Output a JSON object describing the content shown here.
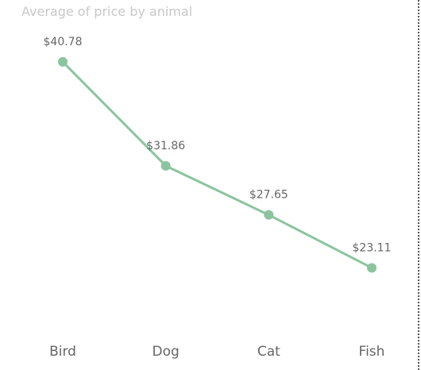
{
  "chart_data": {
    "type": "line",
    "title": "Average of price by animal",
    "categories": [
      "Bird",
      "Dog",
      "Cat",
      "Fish"
    ],
    "values": [
      40.78,
      31.86,
      27.65,
      23.11
    ],
    "data_labels": [
      "$40.78",
      "$31.86",
      "$27.65",
      "$23.11"
    ],
    "xlabel": "",
    "ylabel": "",
    "ylim": [
      18.5,
      42
    ],
    "grid": false,
    "series_color": "#8bc49e"
  }
}
